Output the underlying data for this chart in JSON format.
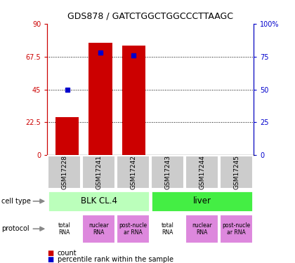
{
  "title": "GDS878 / GATCTGGCTGGCCCTTAAGC",
  "samples": [
    "GSM17228",
    "GSM17241",
    "GSM17242",
    "GSM17243",
    "GSM17244",
    "GSM17245"
  ],
  "counts": [
    26,
    77,
    75,
    0,
    0,
    0
  ],
  "percentiles": [
    50,
    78,
    76,
    0,
    0,
    0
  ],
  "ylim_left": [
    0,
    90
  ],
  "ylim_right": [
    0,
    100
  ],
  "yticks_left": [
    0,
    22.5,
    45,
    67.5,
    90
  ],
  "yticks_right": [
    0,
    25,
    50,
    75,
    100
  ],
  "ytick_labels_left": [
    "0",
    "22.5",
    "45",
    "67.5",
    "90"
  ],
  "ytick_labels_right": [
    "0",
    "25",
    "50",
    "75",
    "100%"
  ],
  "gridlines_at": [
    22.5,
    45,
    67.5
  ],
  "bar_color": "#cc0000",
  "dot_color": "#0000cc",
  "left_axis_color": "#cc0000",
  "right_axis_color": "#0000cc",
  "cell_types": [
    {
      "label": "BLK CL.4",
      "start": 0,
      "end": 3,
      "color": "#bbffbb"
    },
    {
      "label": "liver",
      "start": 3,
      "end": 6,
      "color": "#44ee44"
    }
  ],
  "protocols": [
    {
      "label": "total\nRNA",
      "color": "#ffffff"
    },
    {
      "label": "nuclear\nRNA",
      "color": "#dd88dd"
    },
    {
      "label": "post-nucle\nar RNA",
      "color": "#dd88dd"
    },
    {
      "label": "total\nRNA",
      "color": "#ffffff"
    },
    {
      "label": "nuclear\nRNA",
      "color": "#dd88dd"
    },
    {
      "label": "post-nucle\nar RNA",
      "color": "#dd88dd"
    }
  ],
  "sample_bg_color": "#cccccc",
  "legend_count_color": "#cc0000",
  "legend_pct_color": "#0000cc",
  "bar_width": 0.7
}
